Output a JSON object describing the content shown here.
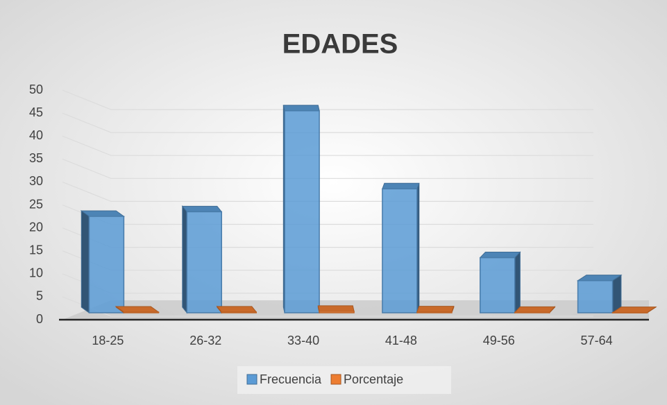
{
  "chart_data": {
    "type": "bar3d",
    "title": "EDADES",
    "categories": [
      "18-25",
      "26-32",
      "33-40",
      "41-48",
      "49-56",
      "57-64"
    ],
    "series": [
      {
        "name": "Frecuencia",
        "color": "#5b9bd5",
        "values": [
          21,
          22,
          44,
          27,
          12,
          7
        ]
      },
      {
        "name": "Porcentaje",
        "color": "#ed7d31",
        "values": [
          0.16,
          0.17,
          0.33,
          0.2,
          0.09,
          0.05
        ]
      }
    ],
    "ylim": [
      0,
      50
    ],
    "yticks": [
      0,
      5,
      10,
      15,
      20,
      25,
      30,
      35,
      40,
      45,
      50
    ],
    "grid": true,
    "legend": "bottom"
  }
}
